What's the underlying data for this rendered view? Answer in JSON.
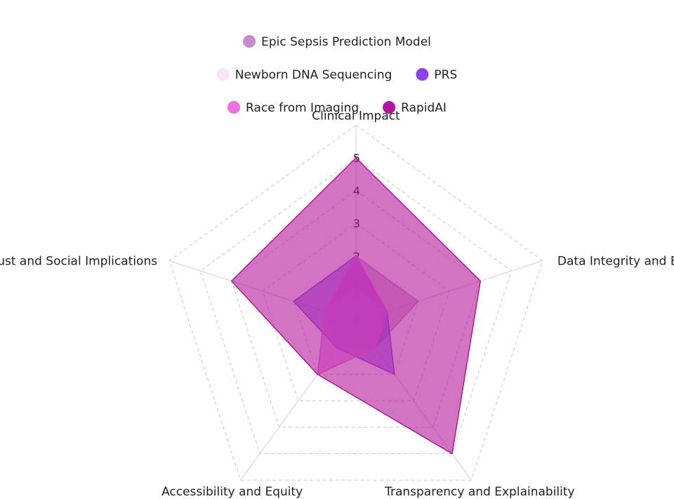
{
  "chart_data": {
    "type": "radar",
    "axes": [
      "Clinical Impact",
      "Data Integrity and Bias",
      "Transparency and Explainability",
      "Accessibility and Equity",
      "Trust and Social Implications"
    ],
    "range": [
      0,
      5
    ],
    "ticks": [
      "0",
      "1",
      "2",
      "3",
      "4",
      "5"
    ],
    "legend_position": "top",
    "series": [
      {
        "name": "Epic Sepsis Prediction Model",
        "color": "#c98bc9",
        "values": [
          2,
          2,
          1,
          1,
          1
        ]
      },
      {
        "name": "Newborn DNA Sequencing",
        "color": "#fde3f7",
        "values": [
          1,
          1,
          1,
          1,
          1
        ]
      },
      {
        "name": "PRS",
        "color": "#8b43f4",
        "values": [
          2,
          1,
          2,
          1,
          2
        ]
      },
      {
        "name": "Race from Imaging",
        "color": "#f06ee4",
        "values": [
          2,
          1,
          1,
          2,
          1
        ]
      },
      {
        "name": "RapidAI",
        "color": "#b2179a",
        "values": [
          5,
          4,
          5,
          2,
          4
        ]
      }
    ]
  }
}
